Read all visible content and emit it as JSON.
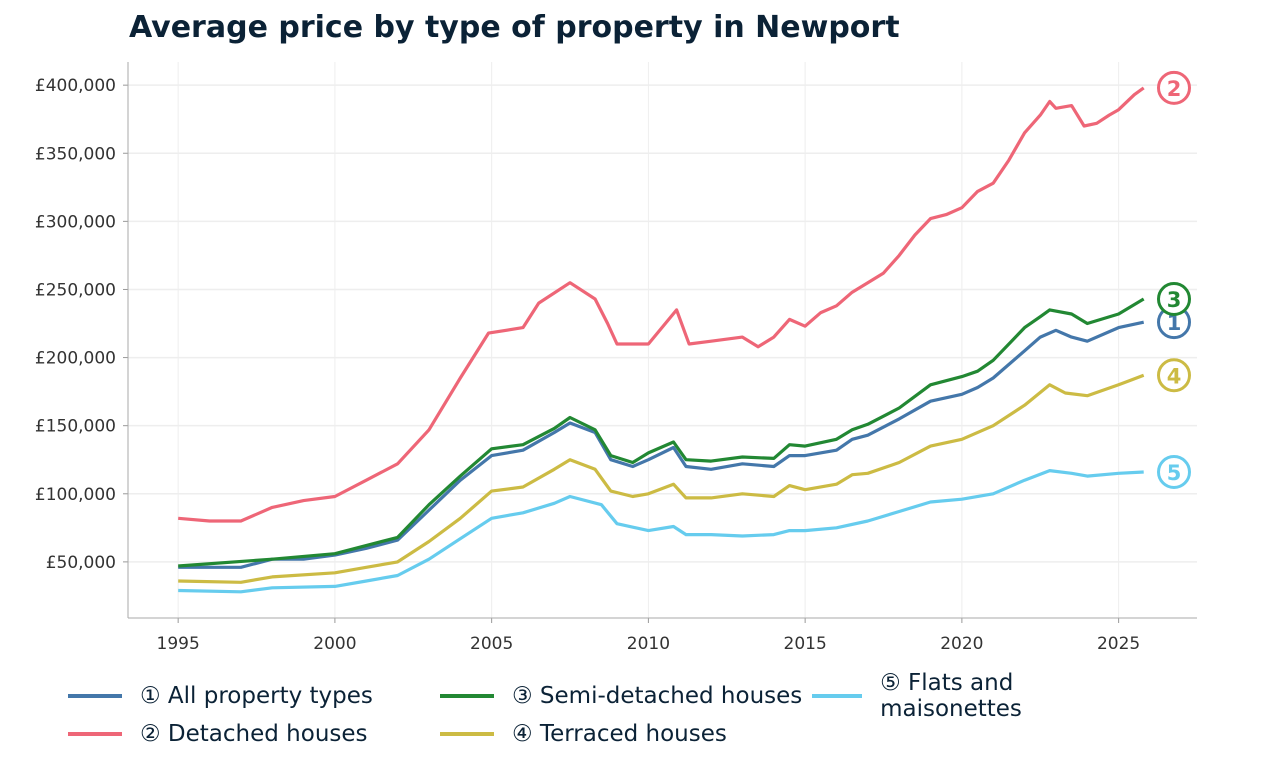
{
  "chart_data": {
    "type": "line",
    "title": "Average price by type of property in Newport",
    "xlabel": "",
    "ylabel": "",
    "xlim": [
      1993.4,
      2027.5
    ],
    "ylim": [
      8800,
      417000
    ],
    "x_ticks": [
      "1995",
      "2000",
      "2005",
      "2010",
      "2015",
      "2020",
      "2025"
    ],
    "y_ticks": [
      "£50,000",
      "£100,000",
      "£150,000",
      "£200,000",
      "£250,000",
      "£300,000",
      "£350,000",
      "£400,000"
    ],
    "grid": true,
    "legend_position": "bottom",
    "series": [
      {
        "name": "① All property types",
        "marker": "1",
        "color": "#4477aa",
        "points": [
          [
            1995,
            46000
          ],
          [
            1996,
            46000
          ],
          [
            1997,
            46000
          ],
          [
            1998,
            52000
          ],
          [
            1999,
            52000
          ],
          [
            2000,
            55000
          ],
          [
            2001,
            60000
          ],
          [
            2002,
            66000
          ],
          [
            2003,
            88000
          ],
          [
            2004,
            110000
          ],
          [
            2005,
            128000
          ],
          [
            2006,
            132000
          ],
          [
            2007,
            145000
          ],
          [
            2007.5,
            152000
          ],
          [
            2008.3,
            145000
          ],
          [
            2008.8,
            125000
          ],
          [
            2009.5,
            120000
          ],
          [
            2010,
            125000
          ],
          [
            2010.8,
            134000
          ],
          [
            2011.2,
            120000
          ],
          [
            2012,
            118000
          ],
          [
            2013,
            122000
          ],
          [
            2014,
            120000
          ],
          [
            2014.5,
            128000
          ],
          [
            2015,
            128000
          ],
          [
            2016,
            132000
          ],
          [
            2016.5,
            140000
          ],
          [
            2017,
            143000
          ],
          [
            2018,
            155000
          ],
          [
            2019,
            168000
          ],
          [
            2020,
            173000
          ],
          [
            2020.5,
            178000
          ],
          [
            2021,
            185000
          ],
          [
            2022,
            205000
          ],
          [
            2022.5,
            215000
          ],
          [
            2023,
            220000
          ],
          [
            2023.5,
            215000
          ],
          [
            2024,
            212000
          ],
          [
            2025,
            222000
          ],
          [
            2025.8,
            226000
          ]
        ]
      },
      {
        "name": "② Detached houses",
        "marker": "2",
        "color": "#ee6677",
        "points": [
          [
            1995,
            82000
          ],
          [
            1996,
            80000
          ],
          [
            1997,
            80000
          ],
          [
            1998,
            90000
          ],
          [
            1999,
            95000
          ],
          [
            2000,
            98000
          ],
          [
            2001,
            110000
          ],
          [
            2002,
            122000
          ],
          [
            2003,
            147000
          ],
          [
            2004,
            185000
          ],
          [
            2004.9,
            218000
          ],
          [
            2006,
            222000
          ],
          [
            2006.5,
            240000
          ],
          [
            2007.5,
            255000
          ],
          [
            2008.3,
            243000
          ],
          [
            2008.7,
            225000
          ],
          [
            2009,
            210000
          ],
          [
            2010,
            210000
          ],
          [
            2010.9,
            235000
          ],
          [
            2011.3,
            210000
          ],
          [
            2012,
            212000
          ],
          [
            2013,
            215000
          ],
          [
            2013.5,
            208000
          ],
          [
            2014,
            215000
          ],
          [
            2014.5,
            228000
          ],
          [
            2015,
            223000
          ],
          [
            2015.5,
            233000
          ],
          [
            2016,
            238000
          ],
          [
            2016.5,
            248000
          ],
          [
            2017,
            255000
          ],
          [
            2017.5,
            262000
          ],
          [
            2018,
            275000
          ],
          [
            2018.5,
            290000
          ],
          [
            2019,
            302000
          ],
          [
            2019.5,
            305000
          ],
          [
            2020,
            310000
          ],
          [
            2020.5,
            322000
          ],
          [
            2021,
            328000
          ],
          [
            2021.5,
            345000
          ],
          [
            2022,
            365000
          ],
          [
            2022.5,
            378000
          ],
          [
            2022.8,
            388000
          ],
          [
            2023,
            383000
          ],
          [
            2023.5,
            385000
          ],
          [
            2023.9,
            370000
          ],
          [
            2024.3,
            372000
          ],
          [
            2024.7,
            378000
          ],
          [
            2025,
            382000
          ],
          [
            2025.5,
            393000
          ],
          [
            2025.8,
            398000
          ]
        ]
      },
      {
        "name": "③ Semi-detached houses",
        "marker": "3",
        "color": "#228833",
        "points": [
          [
            1995,
            47000
          ],
          [
            1998,
            52000
          ],
          [
            2000,
            56000
          ],
          [
            2002,
            68000
          ],
          [
            2003,
            92000
          ],
          [
            2004,
            113000
          ],
          [
            2005,
            133000
          ],
          [
            2006,
            136000
          ],
          [
            2007,
            148000
          ],
          [
            2007.5,
            156000
          ],
          [
            2008.3,
            147000
          ],
          [
            2008.8,
            128000
          ],
          [
            2009.5,
            123000
          ],
          [
            2010,
            130000
          ],
          [
            2010.8,
            138000
          ],
          [
            2011.2,
            125000
          ],
          [
            2012,
            124000
          ],
          [
            2013,
            127000
          ],
          [
            2014,
            126000
          ],
          [
            2014.5,
            136000
          ],
          [
            2015,
            135000
          ],
          [
            2016,
            140000
          ],
          [
            2016.5,
            147000
          ],
          [
            2017,
            151000
          ],
          [
            2018,
            163000
          ],
          [
            2019,
            180000
          ],
          [
            2020,
            186000
          ],
          [
            2020.5,
            190000
          ],
          [
            2021,
            198000
          ],
          [
            2022,
            222000
          ],
          [
            2022.5,
            230000
          ],
          [
            2022.8,
            235000
          ],
          [
            2023.5,
            232000
          ],
          [
            2024,
            225000
          ],
          [
            2025,
            232000
          ],
          [
            2025.8,
            243000
          ]
        ]
      },
      {
        "name": "④ Terraced houses",
        "marker": "4",
        "color": "#ccbb44",
        "points": [
          [
            1995,
            36000
          ],
          [
            1997,
            35000
          ],
          [
            1998,
            39000
          ],
          [
            2000,
            42000
          ],
          [
            2001,
            46000
          ],
          [
            2002,
            50000
          ],
          [
            2003,
            65000
          ],
          [
            2004,
            82000
          ],
          [
            2005,
            102000
          ],
          [
            2006,
            105000
          ],
          [
            2007,
            118000
          ],
          [
            2007.5,
            125000
          ],
          [
            2008.3,
            118000
          ],
          [
            2008.8,
            102000
          ],
          [
            2009.5,
            98000
          ],
          [
            2010,
            100000
          ],
          [
            2010.8,
            107000
          ],
          [
            2011.2,
            97000
          ],
          [
            2012,
            97000
          ],
          [
            2013,
            100000
          ],
          [
            2014,
            98000
          ],
          [
            2014.5,
            106000
          ],
          [
            2015,
            103000
          ],
          [
            2016,
            107000
          ],
          [
            2016.5,
            114000
          ],
          [
            2017,
            115000
          ],
          [
            2018,
            123000
          ],
          [
            2019,
            135000
          ],
          [
            2020,
            140000
          ],
          [
            2021,
            150000
          ],
          [
            2022,
            165000
          ],
          [
            2022.8,
            180000
          ],
          [
            2023.3,
            174000
          ],
          [
            2024,
            172000
          ],
          [
            2025,
            180000
          ],
          [
            2025.8,
            187000
          ]
        ]
      },
      {
        "name": "⑤ Flats and maisonettes",
        "marker": "5",
        "color": "#66ccee",
        "points": [
          [
            1995,
            29000
          ],
          [
            1997,
            28000
          ],
          [
            1998,
            31000
          ],
          [
            2000,
            32000
          ],
          [
            2001,
            36000
          ],
          [
            2002,
            40000
          ],
          [
            2003,
            52000
          ],
          [
            2004,
            67000
          ],
          [
            2005,
            82000
          ],
          [
            2006,
            86000
          ],
          [
            2007,
            93000
          ],
          [
            2007.5,
            98000
          ],
          [
            2008.5,
            92000
          ],
          [
            2009,
            78000
          ],
          [
            2010,
            73000
          ],
          [
            2010.8,
            76000
          ],
          [
            2011.2,
            70000
          ],
          [
            2012,
            70000
          ],
          [
            2013,
            69000
          ],
          [
            2014,
            70000
          ],
          [
            2014.5,
            73000
          ],
          [
            2015,
            73000
          ],
          [
            2016,
            75000
          ],
          [
            2017,
            80000
          ],
          [
            2018,
            87000
          ],
          [
            2019,
            94000
          ],
          [
            2020,
            96000
          ],
          [
            2021,
            100000
          ],
          [
            2022,
            110000
          ],
          [
            2022.8,
            117000
          ],
          [
            2023.5,
            115000
          ],
          [
            2024,
            113000
          ],
          [
            2025,
            115000
          ],
          [
            2025.8,
            116000
          ]
        ]
      }
    ]
  }
}
